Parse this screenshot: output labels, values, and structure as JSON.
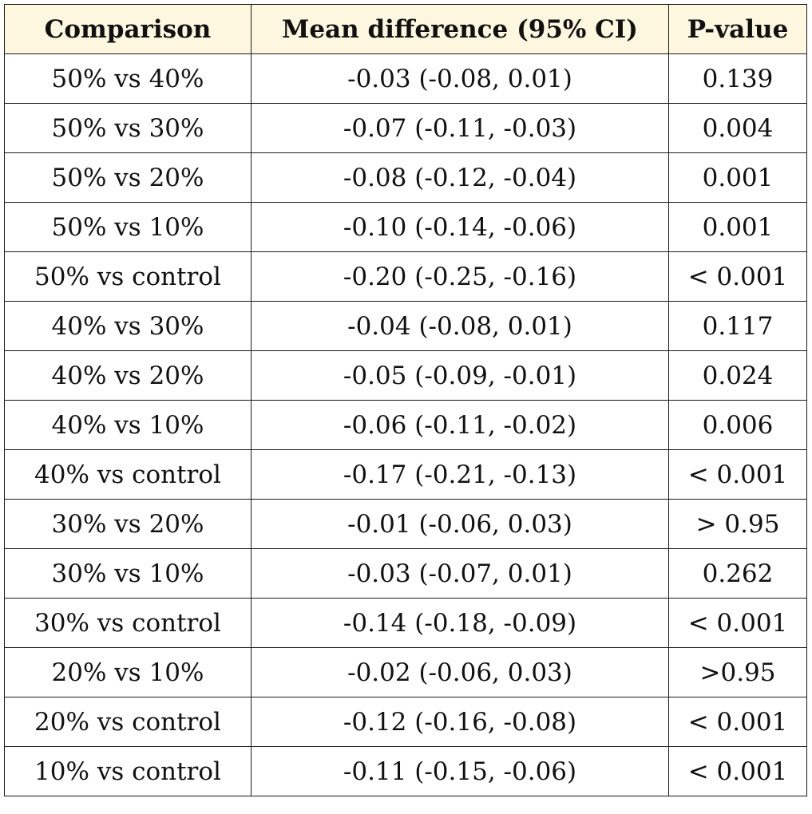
{
  "table": {
    "headers": [
      "Comparison",
      "Mean difference (95% CI)",
      "P-value"
    ],
    "rows": [
      [
        "50% vs 40%",
        "-0.03 (-0.08, 0.01)",
        "0.139"
      ],
      [
        "50% vs 30%",
        "-0.07 (-0.11, -0.03)",
        "0.004"
      ],
      [
        "50% vs 20%",
        "-0.08 (-0.12, -0.04)",
        "0.001"
      ],
      [
        "50% vs 10%",
        "-0.10 (-0.14, -0.06)",
        "0.001"
      ],
      [
        "50% vs control",
        "-0.20 (-0.25, -0.16)",
        "< 0.001"
      ],
      [
        "40% vs 30%",
        "-0.04 (-0.08, 0.01)",
        "0.117"
      ],
      [
        "40% vs 20%",
        "-0.05 (-0.09, -0.01)",
        "0.024"
      ],
      [
        "40% vs 10%",
        "-0.06 (-0.11, -0.02)",
        "0.006"
      ],
      [
        "40% vs control",
        "-0.17 (-0.21, -0.13)",
        "< 0.001"
      ],
      [
        "30% vs 20%",
        "-0.01 (-0.06, 0.03)",
        "> 0.95"
      ],
      [
        "30% vs 10%",
        "-0.03 (-0.07, 0.01)",
        "0.262"
      ],
      [
        "30% vs control",
        "-0.14 (-0.18, -0.09)",
        "< 0.001"
      ],
      [
        "20% vs 10%",
        "-0.02 (-0.06, 0.03)",
        ">0.95"
      ],
      [
        "20% vs control",
        "-0.12 (-0.16, -0.08)",
        "< 0.001"
      ],
      [
        "10% vs control",
        "-0.11 (-0.15, -0.06)",
        "< 0.001"
      ]
    ]
  },
  "colors": {
    "header_background": "#fdf7df",
    "border": "#1a1a1a",
    "text": "#111111"
  }
}
